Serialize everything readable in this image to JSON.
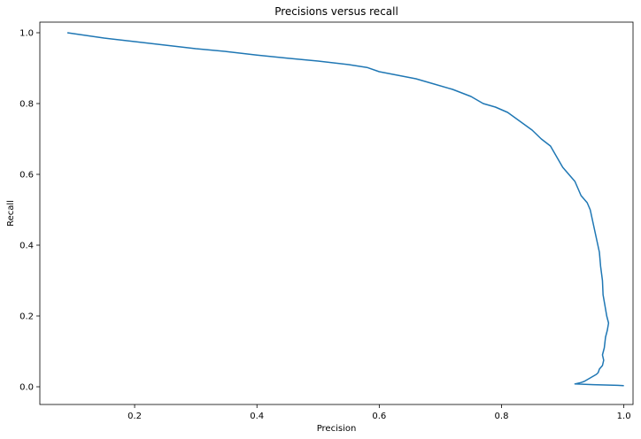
{
  "chart_data": {
    "type": "line",
    "title": "Precisions versus recall",
    "xlabel": "Precision",
    "ylabel": "Recall",
    "xlim": [
      0.045,
      1.015
    ],
    "ylim": [
      -0.05,
      1.03
    ],
    "xticks": [
      0.2,
      0.4,
      0.6,
      0.8,
      1.0
    ],
    "xtick_labels": [
      "0.2",
      "0.4",
      "0.6",
      "0.8",
      "1.0"
    ],
    "yticks": [
      0.0,
      0.2,
      0.4,
      0.6,
      0.8,
      1.0
    ],
    "ytick_labels": [
      "0.0",
      "0.2",
      "0.4",
      "0.6",
      "0.8",
      "1.0"
    ],
    "grid": false,
    "legend": false,
    "line_color": "#1f77b4",
    "series": [
      {
        "x": [
          0.09,
          0.11,
          0.15,
          0.2,
          0.25,
          0.3,
          0.35,
          0.4,
          0.45,
          0.5,
          0.55,
          0.58,
          0.6,
          0.63,
          0.66,
          0.69,
          0.72,
          0.75,
          0.77,
          0.79,
          0.81,
          0.83,
          0.85,
          0.865,
          0.88,
          0.89,
          0.9,
          0.91,
          0.92,
          0.925,
          0.93,
          0.94,
          0.945,
          0.95,
          0.955,
          0.96,
          0.962,
          0.965,
          0.966,
          0.97,
          0.972,
          0.975,
          0.973,
          0.97,
          0.968,
          0.965,
          0.967,
          0.965,
          0.96,
          0.958,
          0.955,
          0.95,
          0.945,
          0.94,
          0.935,
          0.93,
          0.92,
          0.95,
          0.97,
          0.99,
          1.0
        ],
        "y": [
          1.0,
          0.995,
          0.985,
          0.975,
          0.965,
          0.955,
          0.947,
          0.937,
          0.928,
          0.92,
          0.91,
          0.902,
          0.89,
          0.88,
          0.87,
          0.855,
          0.84,
          0.82,
          0.8,
          0.79,
          0.775,
          0.75,
          0.725,
          0.7,
          0.68,
          0.65,
          0.62,
          0.6,
          0.58,
          0.56,
          0.54,
          0.52,
          0.5,
          0.46,
          0.42,
          0.38,
          0.34,
          0.3,
          0.26,
          0.22,
          0.2,
          0.18,
          0.16,
          0.14,
          0.11,
          0.09,
          0.075,
          0.06,
          0.05,
          0.04,
          0.035,
          0.03,
          0.025,
          0.02,
          0.015,
          0.012,
          0.008,
          0.006,
          0.005,
          0.004,
          0.003
        ]
      }
    ]
  }
}
